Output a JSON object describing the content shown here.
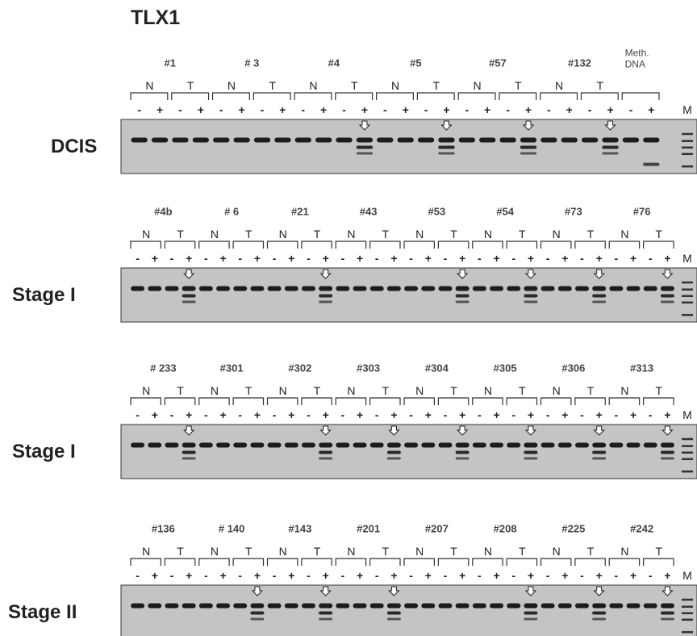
{
  "title": "TLX1",
  "panels": [
    {
      "label": "DCIS",
      "marker": "M",
      "samples": [
        {
          "id": "#1",
          "groups": [
            {
              "label": "N",
              "lanes": [
                "-",
                "+"
              ]
            },
            {
              "label": "T",
              "lanes": [
                "-",
                "+"
              ]
            }
          ]
        },
        {
          "id": "# 3",
          "groups": [
            {
              "label": "N",
              "lanes": [
                "-",
                "+"
              ]
            },
            {
              "label": "T",
              "lanes": [
                "-",
                "+"
              ]
            }
          ]
        },
        {
          "id": "#4",
          "groups": [
            {
              "label": "N",
              "lanes": [
                "-",
                "+"
              ]
            },
            {
              "label": "T",
              "lanes": [
                "-",
                "+"
              ]
            }
          ]
        },
        {
          "id": "#5",
          "groups": [
            {
              "label": "N",
              "lanes": [
                "-",
                "+"
              ]
            },
            {
              "label": "T",
              "lanes": [
                "-",
                "+"
              ]
            }
          ]
        },
        {
          "id": "#57",
          "groups": [
            {
              "label": "N",
              "lanes": [
                "-",
                "+"
              ]
            },
            {
              "label": "T",
              "lanes": [
                "-",
                "+"
              ]
            }
          ]
        },
        {
          "id": "#132",
          "groups": [
            {
              "label": "N",
              "lanes": [
                "-",
                "+"
              ]
            },
            {
              "label": "T",
              "lanes": [
                "-",
                "+"
              ]
            }
          ]
        },
        {
          "id": "Meth. DNA",
          "groups": [
            {
              "lanes": [
                "-",
                "+"
              ]
            }
          ]
        }
      ]
    },
    {
      "label": "Stage I",
      "marker": "M",
      "samples": [
        {
          "id": "#4b",
          "groups": [
            {
              "label": "N",
              "lanes": [
                "-",
                "+"
              ]
            },
            {
              "label": "T",
              "lanes": [
                "-",
                "+"
              ]
            }
          ]
        },
        {
          "id": "# 6",
          "groups": [
            {
              "label": "N",
              "lanes": [
                "-",
                "+"
              ]
            },
            {
              "label": "T",
              "lanes": [
                "-",
                "+"
              ]
            }
          ]
        },
        {
          "id": "#21",
          "groups": [
            {
              "label": "N",
              "lanes": [
                "-",
                "+"
              ]
            },
            {
              "label": "T",
              "lanes": [
                "-",
                "+"
              ]
            }
          ]
        },
        {
          "id": "#43",
          "groups": [
            {
              "label": "N",
              "lanes": [
                "-",
                "+"
              ]
            },
            {
              "label": "T",
              "lanes": [
                "-",
                "+"
              ]
            }
          ]
        },
        {
          "id": "#53",
          "groups": [
            {
              "label": "N",
              "lanes": [
                "-",
                "+"
              ]
            },
            {
              "label": "T",
              "lanes": [
                "-",
                "+"
              ]
            }
          ]
        },
        {
          "id": "#54",
          "groups": [
            {
              "label": "N",
              "lanes": [
                "-",
                "+"
              ]
            },
            {
              "label": "T",
              "lanes": [
                "-",
                "+"
              ]
            }
          ]
        },
        {
          "id": "#73",
          "groups": [
            {
              "label": "N",
              "lanes": [
                "-",
                "+"
              ]
            },
            {
              "label": "T",
              "lanes": [
                "-",
                "+"
              ]
            }
          ]
        },
        {
          "id": "#76",
          "groups": [
            {
              "label": "N",
              "lanes": [
                "-",
                "+"
              ]
            },
            {
              "label": "T",
              "lanes": [
                "-",
                "+"
              ]
            }
          ]
        }
      ]
    },
    {
      "label": "Stage I",
      "marker": "M",
      "samples": [
        {
          "id": "# 233",
          "groups": [
            {
              "label": "N",
              "lanes": [
                "-",
                "+"
              ]
            },
            {
              "label": "T",
              "lanes": [
                "-",
                "+"
              ]
            }
          ]
        },
        {
          "id": "#301",
          "groups": [
            {
              "label": "N",
              "lanes": [
                "-",
                "+"
              ]
            },
            {
              "label": "T",
              "lanes": [
                "-",
                "+"
              ]
            }
          ]
        },
        {
          "id": "#302",
          "groups": [
            {
              "label": "N",
              "lanes": [
                "-",
                "+"
              ]
            },
            {
              "label": "T",
              "lanes": [
                "-",
                "+"
              ]
            }
          ]
        },
        {
          "id": "#303",
          "groups": [
            {
              "label": "N",
              "lanes": [
                "-",
                "+"
              ]
            },
            {
              "label": "T",
              "lanes": [
                "-",
                "+"
              ]
            }
          ]
        },
        {
          "id": "#304",
          "groups": [
            {
              "label": "N",
              "lanes": [
                "-",
                "+"
              ]
            },
            {
              "label": "T",
              "lanes": [
                "-",
                "+"
              ]
            }
          ]
        },
        {
          "id": "#305",
          "groups": [
            {
              "label": "N",
              "lanes": [
                "-",
                "+"
              ]
            },
            {
              "label": "T",
              "lanes": [
                "-",
                "+"
              ]
            }
          ]
        },
        {
          "id": "#306",
          "groups": [
            {
              "label": "N",
              "lanes": [
                "-",
                "+"
              ]
            },
            {
              "label": "T",
              "lanes": [
                "-",
                "+"
              ]
            }
          ]
        },
        {
          "id": "#313",
          "groups": [
            {
              "label": "N",
              "lanes": [
                "-",
                "+"
              ]
            },
            {
              "label": "T",
              "lanes": [
                "-",
                "+"
              ]
            }
          ]
        }
      ]
    },
    {
      "label": "Stage II",
      "marker": "M",
      "samples": [
        {
          "id": "#136",
          "groups": [
            {
              "label": "N",
              "lanes": [
                "-",
                "+"
              ]
            },
            {
              "label": "T",
              "lanes": [
                "-",
                "+"
              ]
            }
          ]
        },
        {
          "id": "# 140",
          "groups": [
            {
              "label": "N",
              "lanes": [
                "-",
                "+"
              ]
            },
            {
              "label": "T",
              "lanes": [
                "-",
                "+"
              ]
            }
          ]
        },
        {
          "id": "#143",
          "groups": [
            {
              "label": "N",
              "lanes": [
                "-",
                "+"
              ]
            },
            {
              "label": "T",
              "lanes": [
                "-",
                "+"
              ]
            }
          ]
        },
        {
          "id": "#201",
          "groups": [
            {
              "label": "N",
              "lanes": [
                "-",
                "+"
              ]
            },
            {
              "label": "T",
              "lanes": [
                "-",
                "+"
              ]
            }
          ]
        },
        {
          "id": "#207",
          "groups": [
            {
              "label": "N",
              "lanes": [
                "-",
                "+"
              ]
            },
            {
              "label": "T",
              "lanes": [
                "-",
                "+"
              ]
            }
          ]
        },
        {
          "id": "#208",
          "groups": [
            {
              "label": "N",
              "lanes": [
                "-",
                "+"
              ]
            },
            {
              "label": "T",
              "lanes": [
                "-",
                "+"
              ]
            }
          ]
        },
        {
          "id": "#225",
          "groups": [
            {
              "label": "N",
              "lanes": [
                "-",
                "+"
              ]
            },
            {
              "label": "T",
              "lanes": [
                "-",
                "+"
              ]
            }
          ]
        },
        {
          "id": "#242",
          "groups": [
            {
              "label": "N",
              "lanes": [
                "-",
                "+"
              ]
            },
            {
              "label": "T",
              "lanes": [
                "-",
                "+"
              ]
            }
          ]
        }
      ]
    }
  ]
}
